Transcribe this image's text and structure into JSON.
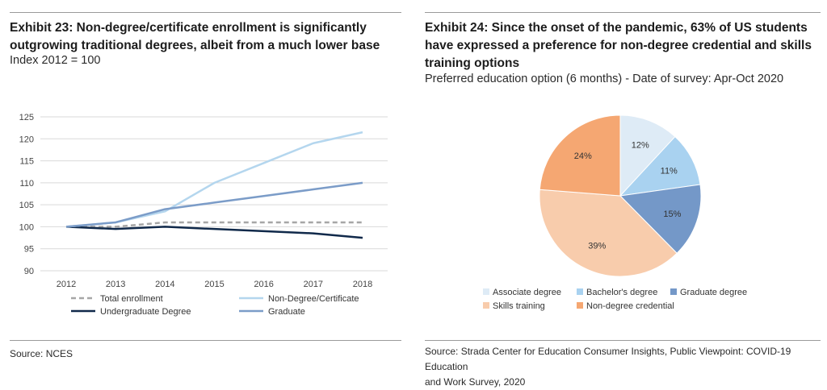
{
  "left": {
    "title_line1": "Exhibit 23: Non-degree/certificate enrollment is significantly",
    "title_line2": "outgrowing traditional degrees, albeit from a much lower base",
    "subtitle": "Index 2012 = 100",
    "source": "Source: NCES"
  },
  "right": {
    "title_line1": "Exhibit 24: Since the onset of the pandemic, 63% of US students",
    "title_line2": "have expressed a preference for non-degree credential and skills",
    "title_line3": "training options",
    "subtitle": "Preferred education option (6 months) - Date of survey: Apr-Oct 2020",
    "source_line1": "Source: Strada Center for Education Consumer Insights, Public Viewpoint: COVID-19 Education",
    "source_line2": "and Work Survey, 2020"
  },
  "chart_data": [
    {
      "type": "line",
      "x": [
        "2012",
        "2013",
        "2014",
        "2015",
        "2016",
        "2017",
        "2018"
      ],
      "ylim": [
        90,
        125
      ],
      "yticks": [
        "90",
        "95",
        "100",
        "105",
        "110",
        "115",
        "120",
        "125"
      ],
      "grid": true,
      "legend_position": "bottom",
      "series": [
        {
          "name": "Total enrollment",
          "values": [
            100,
            100,
            101,
            101,
            101,
            101,
            101
          ],
          "color": "#a6a6a6",
          "style": "dashed"
        },
        {
          "name": "Non-Degree/Certificate",
          "values": [
            100,
            101,
            103.5,
            110,
            114.5,
            119,
            121.5
          ],
          "color": "#b4d6ee",
          "style": "solid"
        },
        {
          "name": "Undergraduate Degree",
          "values": [
            100,
            99.5,
            100,
            99.5,
            99,
            98.5,
            97.5
          ],
          "color": "#10294a",
          "style": "solid"
        },
        {
          "name": "Graduate",
          "values": [
            100,
            101,
            104,
            105.5,
            107,
            108.5,
            110
          ],
          "color": "#7b9cc8",
          "style": "solid"
        }
      ]
    },
    {
      "type": "pie",
      "legend_position": "bottom",
      "slices": [
        {
          "name": "Associate degree",
          "value": 12,
          "label": "12%",
          "color": "#deebf6"
        },
        {
          "name": "Bachelor's degree",
          "value": 11,
          "label": "11%",
          "color": "#a9d2f0"
        },
        {
          "name": "Graduate degree",
          "value": 15,
          "label": "15%",
          "color": "#7498c8"
        },
        {
          "name": "Skills training",
          "value": 39,
          "label": "39%",
          "color": "#f8ccac"
        },
        {
          "name": "Non-degree credential",
          "value": 24,
          "label": "24%",
          "color": "#f5a772"
        }
      ]
    }
  ]
}
